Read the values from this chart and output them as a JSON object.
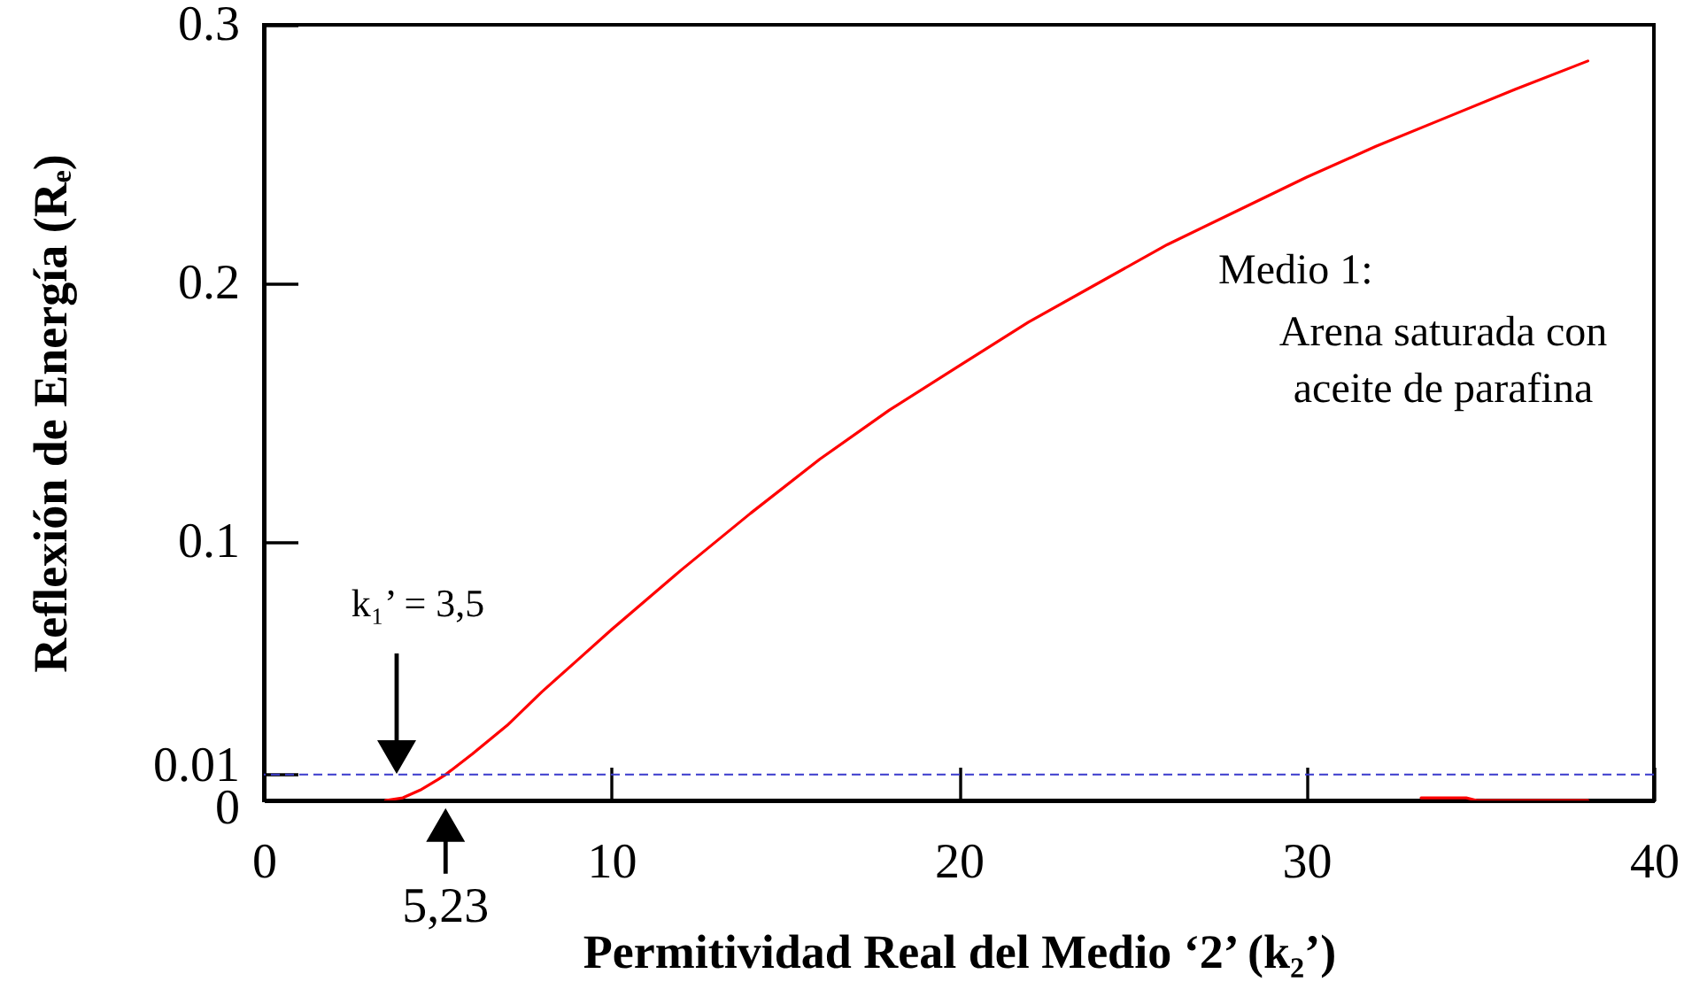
{
  "chart_data": {
    "type": "line",
    "xlabel": "Permitividad Real del Medio ‘2’ (k₂’)",
    "ylabel": "Reflexión de Energía (Rₑ)",
    "series": [
      {
        "color": "#ff0000",
        "x": [
          3.5,
          4,
          4.5,
          5,
          5.23,
          6,
          7,
          8,
          9,
          10,
          12,
          14,
          16,
          18,
          20,
          22,
          24,
          26,
          28,
          30,
          32,
          34,
          36,
          38.1
        ],
        "values": [
          0,
          0.001,
          0.004,
          0.008,
          0.01,
          0.018,
          0.029,
          0.042,
          0.054,
          0.066,
          0.089,
          0.111,
          0.132,
          0.151,
          0.168,
          0.185,
          0.2,
          0.215,
          0.228,
          0.241,
          0.253,
          0.264,
          0.275,
          0.286
        ]
      },
      {
        "color": "#ff0000",
        "x": [
          33.3,
          34.6,
          34.9,
          38.1
        ],
        "values": [
          0.001,
          0.001,
          0,
          0
        ]
      }
    ],
    "xlim": [
      0,
      40
    ],
    "xticks": [
      0,
      10,
      20,
      30,
      40
    ],
    "ylim": [
      0,
      0.3
    ],
    "yticks": [
      0,
      0.01,
      0.1,
      0.2,
      0.3
    ],
    "ref_lines": [
      {
        "axis": "y",
        "value": 0.01,
        "color": "#3a3acc",
        "line_style": "dashed"
      }
    ],
    "annotations": [
      "Medio 1:",
      "Arena saturada con aceite de parafina",
      "k₁’ = 3,5",
      {
        "text": "5,23",
        "x": 5.23,
        "y": 0.01
      }
    ]
  }
}
